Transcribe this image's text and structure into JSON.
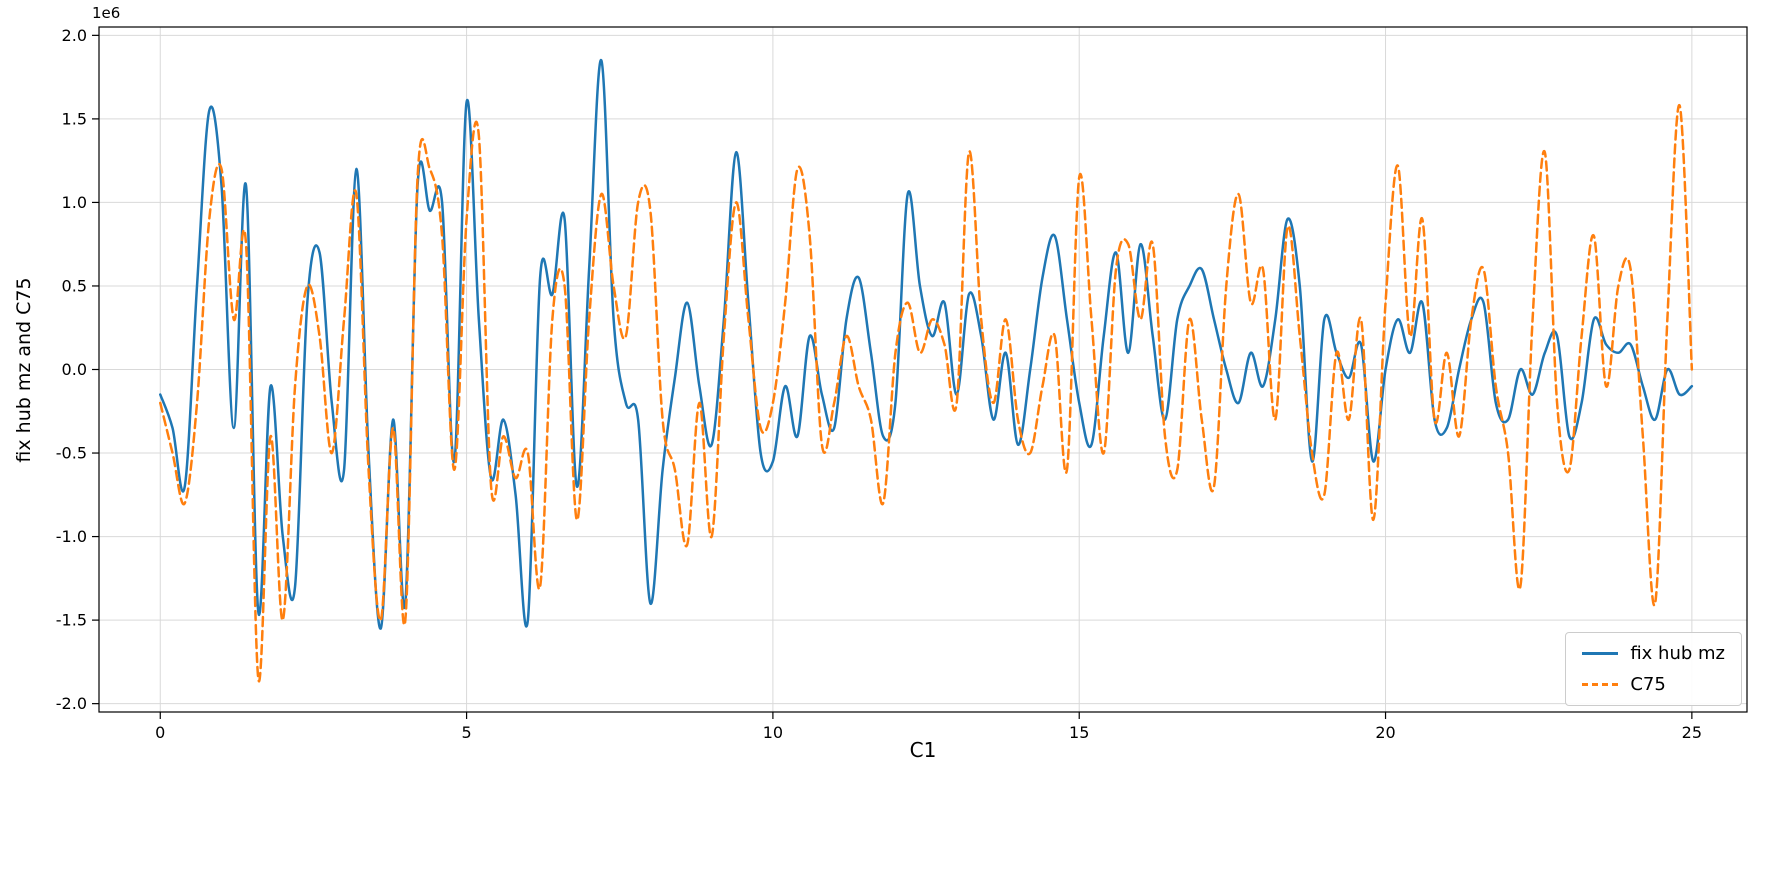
{
  "figure": {
    "background": "#ffffff"
  },
  "chart_data": {
    "type": "line",
    "title": "",
    "xlabel": "C1",
    "ylabel": "fix hub mz and C75",
    "offset_text": "1e6",
    "y_unit_multiplier": 1000000,
    "grid": true,
    "grid_color": "#d9d9d9",
    "legend_position": "lower right",
    "xlim": [
      -1.0,
      25.9
    ],
    "ylim": [
      -2.05,
      2.05
    ],
    "xticks": [
      0,
      5,
      10,
      15,
      20,
      25
    ],
    "yticks": [
      -2.0,
      -1.5,
      -1.0,
      -0.5,
      0.0,
      0.5,
      1.0,
      1.5,
      2.0
    ],
    "x": [
      0,
      0.2,
      0.4,
      0.6,
      0.8,
      1,
      1.2,
      1.4,
      1.6,
      1.8,
      2,
      2.2,
      2.4,
      2.6,
      2.8,
      3,
      3.2,
      3.4,
      3.6,
      3.8,
      4,
      4.2,
      4.4,
      4.6,
      4.8,
      5,
      5.2,
      5.4,
      5.6,
      5.8,
      6,
      6.2,
      6.4,
      6.6,
      6.8,
      7,
      7.2,
      7.4,
      7.6,
      7.8,
      8,
      8.2,
      8.4,
      8.6,
      8.8,
      9,
      9.2,
      9.4,
      9.6,
      9.8,
      10,
      10.2,
      10.4,
      10.6,
      10.8,
      11,
      11.2,
      11.4,
      11.6,
      11.8,
      12,
      12.2,
      12.4,
      12.6,
      12.8,
      13,
      13.2,
      13.4,
      13.6,
      13.8,
      14,
      14.2,
      14.4,
      14.6,
      14.8,
      15,
      15.2,
      15.4,
      15.6,
      15.8,
      16,
      16.2,
      16.4,
      16.6,
      16.8,
      17,
      17.2,
      17.4,
      17.6,
      17.8,
      18,
      18.2,
      18.4,
      18.6,
      18.8,
      19,
      19.2,
      19.4,
      19.6,
      19.8,
      20,
      20.2,
      20.4,
      20.6,
      20.8,
      21,
      21.2,
      21.4,
      21.6,
      21.8,
      22,
      22.2,
      22.4,
      22.6,
      22.8,
      23,
      23.2,
      23.4,
      23.6,
      23.8,
      24,
      24.2,
      24.4,
      24.6,
      24.8,
      25
    ],
    "series": [
      {
        "name": "fix hub mz",
        "color": "#1f77b4",
        "style": "solid",
        "values": [
          -0.15,
          -0.35,
          -0.7,
          0.5,
          1.55,
          1.1,
          -0.35,
          1.1,
          -1.45,
          -0.1,
          -1.0,
          -1.3,
          0.4,
          0.7,
          -0.2,
          -0.6,
          1.2,
          -0.5,
          -1.55,
          -0.3,
          -1.4,
          1.1,
          0.95,
          1.0,
          -0.55,
          1.6,
          0.3,
          -0.65,
          -0.3,
          -0.75,
          -1.5,
          0.55,
          0.45,
          0.9,
          -0.7,
          0.6,
          1.85,
          0.3,
          -0.2,
          -0.3,
          -1.4,
          -0.6,
          -0.05,
          0.4,
          -0.1,
          -0.45,
          0.3,
          1.3,
          0.4,
          -0.5,
          -0.55,
          -0.1,
          -0.4,
          0.2,
          -0.15,
          -0.35,
          0.3,
          0.55,
          0.1,
          -0.4,
          -0.2,
          1.05,
          0.5,
          0.2,
          0.4,
          -0.15,
          0.45,
          0.2,
          -0.3,
          0.1,
          -0.45,
          0.0,
          0.55,
          0.8,
          0.3,
          -0.2,
          -0.45,
          0.2,
          0.7,
          0.1,
          0.75,
          0.2,
          -0.3,
          0.3,
          0.5,
          0.6,
          0.3,
          0.0,
          -0.2,
          0.1,
          -0.1,
          0.3,
          0.9,
          0.5,
          -0.55,
          0.3,
          0.1,
          -0.05,
          0.15,
          -0.55,
          0.0,
          0.3,
          0.1,
          0.4,
          -0.3,
          -0.35,
          0.0,
          0.3,
          0.4,
          -0.2,
          -0.3,
          0.0,
          -0.15,
          0.1,
          0.2,
          -0.4,
          -0.2,
          0.3,
          0.15,
          0.1,
          0.15,
          -0.1,
          -0.3,
          0.0,
          -0.15,
          -0.1
        ]
      },
      {
        "name": "C75",
        "color": "#ff7f0e",
        "style": "dashed",
        "values": [
          -0.2,
          -0.5,
          -0.8,
          -0.2,
          0.9,
          1.2,
          0.3,
          0.75,
          -1.85,
          -0.4,
          -1.5,
          -0.1,
          0.5,
          0.2,
          -0.5,
          0.3,
          1.05,
          -0.6,
          -1.5,
          -0.35,
          -1.5,
          1.15,
          1.2,
          0.8,
          -0.6,
          0.9,
          1.4,
          -0.7,
          -0.4,
          -0.65,
          -0.5,
          -1.3,
          0.3,
          0.5,
          -0.9,
          0.3,
          1.05,
          0.5,
          0.2,
          1.0,
          0.95,
          -0.3,
          -0.6,
          -1.05,
          -0.2,
          -1.0,
          0.2,
          1.0,
          0.3,
          -0.35,
          -0.2,
          0.4,
          1.2,
          0.8,
          -0.45,
          -0.2,
          0.2,
          -0.1,
          -0.3,
          -0.8,
          0.1,
          0.4,
          0.1,
          0.3,
          0.15,
          -0.2,
          1.3,
          0.3,
          -0.2,
          0.3,
          -0.3,
          -0.5,
          -0.1,
          0.2,
          -0.6,
          1.15,
          0.3,
          -0.5,
          0.6,
          0.75,
          0.3,
          0.75,
          -0.4,
          -0.6,
          0.3,
          -0.3,
          -0.7,
          0.5,
          1.05,
          0.4,
          0.6,
          -0.3,
          0.85,
          0.2,
          -0.5,
          -0.75,
          0.1,
          -0.3,
          0.3,
          -0.9,
          0.4,
          1.22,
          0.2,
          0.9,
          -0.3,
          0.1,
          -0.4,
          0.3,
          0.6,
          -0.1,
          -0.5,
          -1.3,
          0.3,
          1.3,
          -0.2,
          -0.6,
          0.2,
          0.8,
          -0.1,
          0.5,
          0.6,
          -0.4,
          -1.4,
          0.3,
          1.58,
          0.0
        ]
      }
    ]
  }
}
